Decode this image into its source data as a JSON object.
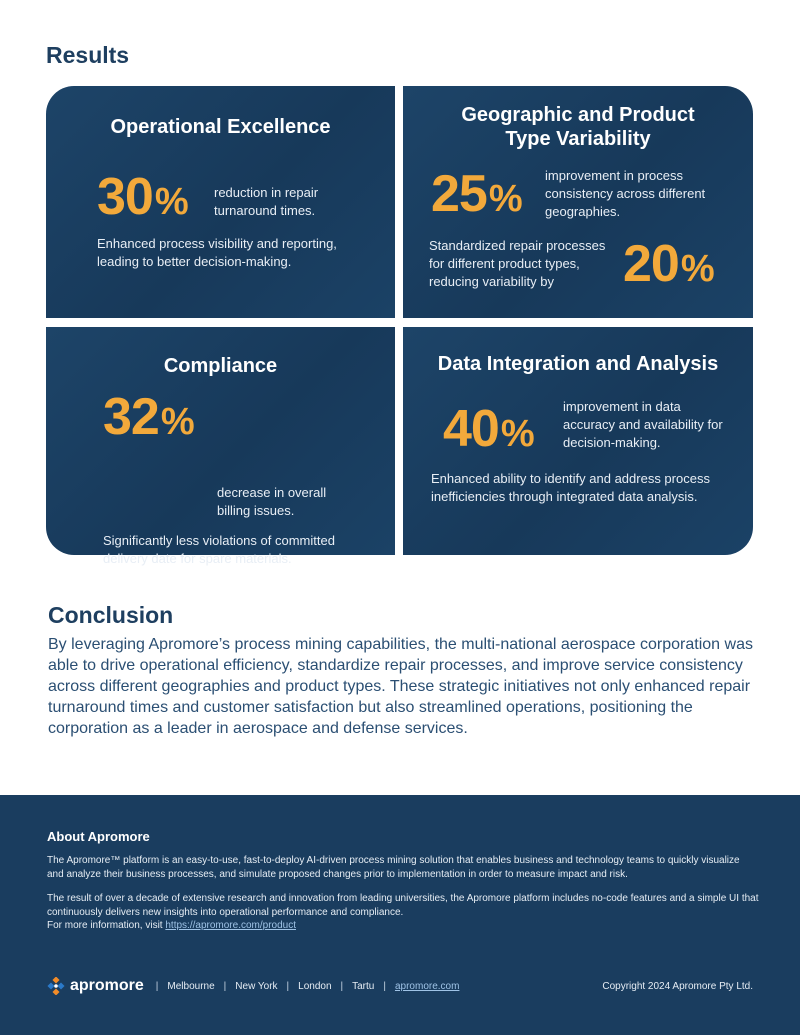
{
  "results": {
    "title": "Results",
    "cards": [
      {
        "title": "Operational Excellence",
        "stats": [
          {
            "number": "30",
            "unit": "%",
            "text": "reduction in repair turnaround times."
          }
        ],
        "body": "Enhanced process visibility and reporting, leading to better decision-making."
      },
      {
        "title_line1": "Geographic and Product",
        "title_line2": "Type Variability",
        "stats": [
          {
            "number": "25",
            "unit": "%",
            "text": "improvement in process consistency across different geographies."
          },
          {
            "number": "20",
            "unit": "%",
            "text": "Standardized repair processes for different product types, reducing variability by"
          }
        ]
      },
      {
        "title": "Compliance",
        "stats": [
          {
            "number": "32",
            "unit": "%",
            "text": "decrease in overall billing issues."
          }
        ],
        "body": "Significantly less violations of committed delivery date for spare materials."
      },
      {
        "title": "Data Integration and Analysis",
        "stats": [
          {
            "number": "40",
            "unit": "%",
            "text": "improvement in data accuracy and availability for decision-making."
          }
        ],
        "body": "Enhanced ability to identify and address process inefficiencies through integrated data analysis."
      }
    ]
  },
  "conclusion": {
    "title": "Conclusion",
    "text": "By leveraging Apromore’s process mining capabilities, the multi-national aerospace corporation was able to drive operational efficiency, standardize repair processes, and improve service consistency across different geographies and product types. These strategic initiatives not only enhanced repair turnaround times and customer satisfaction but also streamlined operations, positioning the corporation as a leader in aerospace and defense services."
  },
  "footer": {
    "about_title": "About Apromore",
    "about_p1": "The Apromore™ platform is an easy-to-use, fast-to-deploy AI-driven process mining solution that enables business and technology teams to quickly visualize and analyze their business processes, and simulate proposed changes prior to implementation in order to measure impact and risk.",
    "about_p2": "The result of over a decade of extensive research and innovation from leading universities, the Apromore platform includes no-code features and a simple UI that continuously delivers new insights into operational performance and compliance.",
    "more_info_prefix": "For more information, visit ",
    "more_info_link": "https://apromore.com/product",
    "logo_text": "apromore",
    "locations": [
      "Melbourne",
      "New York",
      "London",
      "Tartu"
    ],
    "site_link": "apromore.com",
    "separator": "|",
    "copyright": "Copyright 2024 Apromore Pty Ltd.",
    "logo_icon": "apromore-logo-icon",
    "colors": {
      "accent": "#f2a93b",
      "navy": "#1a3d5f",
      "logo_orange": "#f28c28",
      "logo_blue": "#2a79c8"
    }
  }
}
